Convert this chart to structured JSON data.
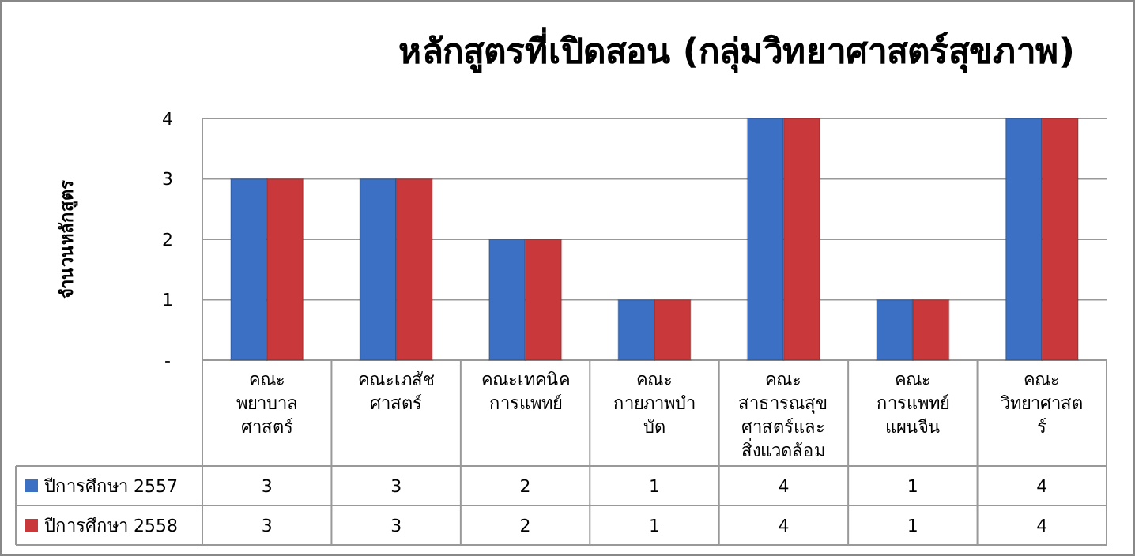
{
  "chart_data": {
    "type": "bar",
    "title": "หลักสูตรที่เปิดสอน (กลุ่มวิทยาศาสตร์สุขภาพ)",
    "ylabel": "จำนวนหลักสูตร",
    "categories": [
      "คณะ\nพยาบาล\nศาสตร์",
      "คณะเภสัช\nศาสตร์",
      "คณะเทคนิค\nการแพทย์",
      "คณะ\nกายภาพบำ\nบัด",
      "คณะ\nสาธารณสุข\nศาสตร์และ\nสิ่งแวดล้อม",
      "คณะ\nการแพทย์\nแผนจีน",
      "คณะ\nวิทยาศาสต\nร์"
    ],
    "series": [
      {
        "name": "ปีการศึกษา 2557",
        "color": "#3b70c4",
        "values": [
          3,
          3,
          2,
          1,
          4,
          1,
          4
        ]
      },
      {
        "name": "ปีการศึกษา 2558",
        "color": "#c9383a",
        "values": [
          3,
          3,
          2,
          1,
          4,
          1,
          4
        ]
      }
    ],
    "ylim": [
      0,
      4
    ],
    "yticks": [
      {
        "value": 0,
        "label": "-"
      },
      1,
      2,
      3,
      4
    ],
    "grid": "y",
    "data_labels": true,
    "legend": "bottom left"
  }
}
